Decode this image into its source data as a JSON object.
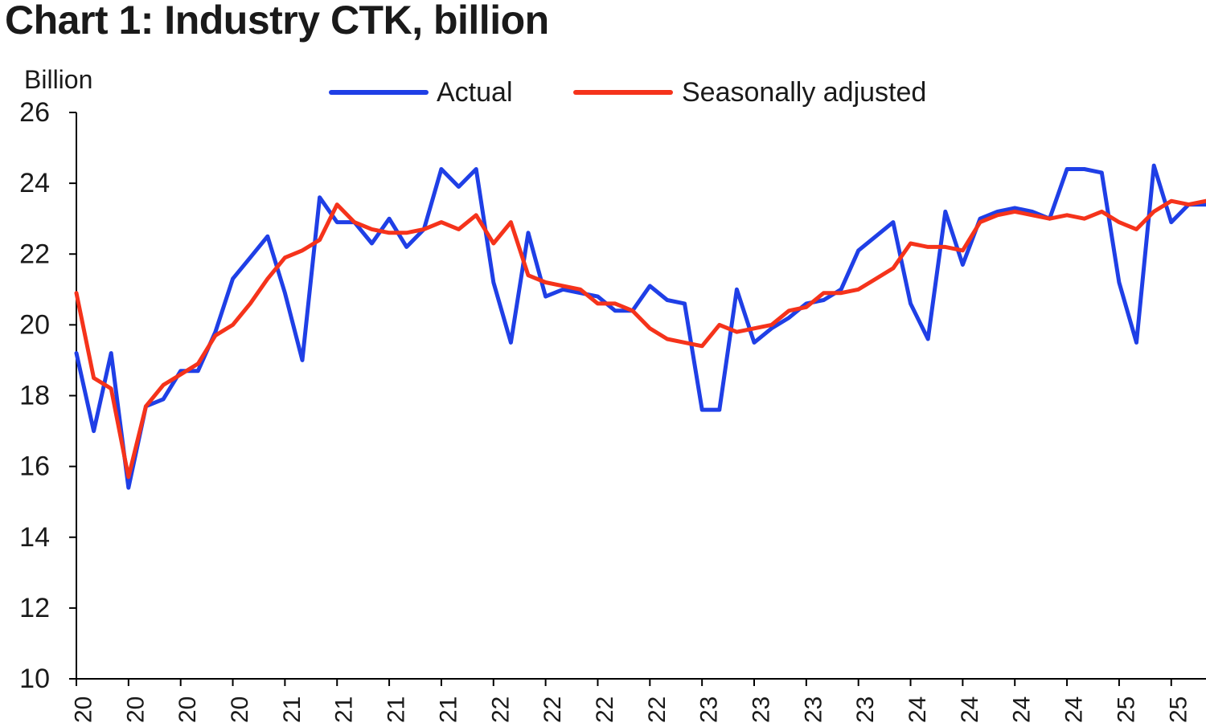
{
  "chart_data": {
    "type": "line",
    "title": "Chart 1: Industry CTK, billion",
    "ylabel": "Billion",
    "ylim": [
      10,
      26
    ],
    "yticks": [
      10,
      12,
      14,
      16,
      18,
      20,
      22,
      24,
      26
    ],
    "xtick_labels": [
      "20",
      "20",
      "20",
      "20",
      "21",
      "21",
      "21",
      "21",
      "22",
      "22",
      "22",
      "22",
      "23",
      "23",
      "23",
      "23",
      "24",
      "24",
      "24",
      "24",
      "25",
      "25"
    ],
    "legend_position": "top-center",
    "grid": false,
    "series": [
      {
        "name": "Actual",
        "color": "#1f3fe6",
        "values": [
          19.2,
          17.0,
          19.2,
          15.4,
          17.7,
          17.9,
          18.7,
          18.7,
          19.8,
          21.3,
          21.9,
          22.5,
          20.9,
          19.0,
          23.6,
          22.9,
          22.9,
          22.3,
          23.0,
          22.2,
          22.7,
          24.4,
          23.9,
          24.4,
          21.2,
          19.5,
          22.6,
          20.8,
          21.0,
          20.9,
          20.8,
          20.4,
          20.4,
          21.1,
          20.7,
          20.6,
          17.6,
          17.6,
          21.0,
          19.5,
          19.9,
          20.2,
          20.6,
          20.7,
          21.0,
          22.1,
          22.5,
          22.9,
          20.6,
          19.6,
          23.2,
          21.7,
          23.0,
          23.2,
          23.3,
          23.2,
          23.0,
          24.4,
          24.4,
          24.3,
          21.2,
          19.5,
          24.5,
          22.9,
          23.4,
          23.4
        ]
      },
      {
        "name": "Seasonally adjusted",
        "color": "#f5331b",
        "values": [
          20.9,
          18.5,
          18.2,
          15.7,
          17.7,
          18.3,
          18.6,
          18.9,
          19.7,
          20.0,
          20.6,
          21.3,
          21.9,
          22.1,
          22.4,
          23.4,
          22.9,
          22.7,
          22.6,
          22.6,
          22.7,
          22.9,
          22.7,
          23.1,
          22.3,
          22.9,
          21.4,
          21.2,
          21.1,
          21.0,
          20.6,
          20.6,
          20.4,
          19.9,
          19.6,
          19.5,
          19.4,
          20.0,
          19.8,
          19.9,
          20.0,
          20.4,
          20.5,
          20.9,
          20.9,
          21.0,
          21.3,
          21.6,
          22.3,
          22.2,
          22.2,
          22.1,
          22.9,
          23.1,
          23.2,
          23.1,
          23.0,
          23.1,
          23.0,
          23.2,
          22.9,
          22.7,
          23.2,
          23.5,
          23.4,
          23.5
        ]
      }
    ]
  }
}
